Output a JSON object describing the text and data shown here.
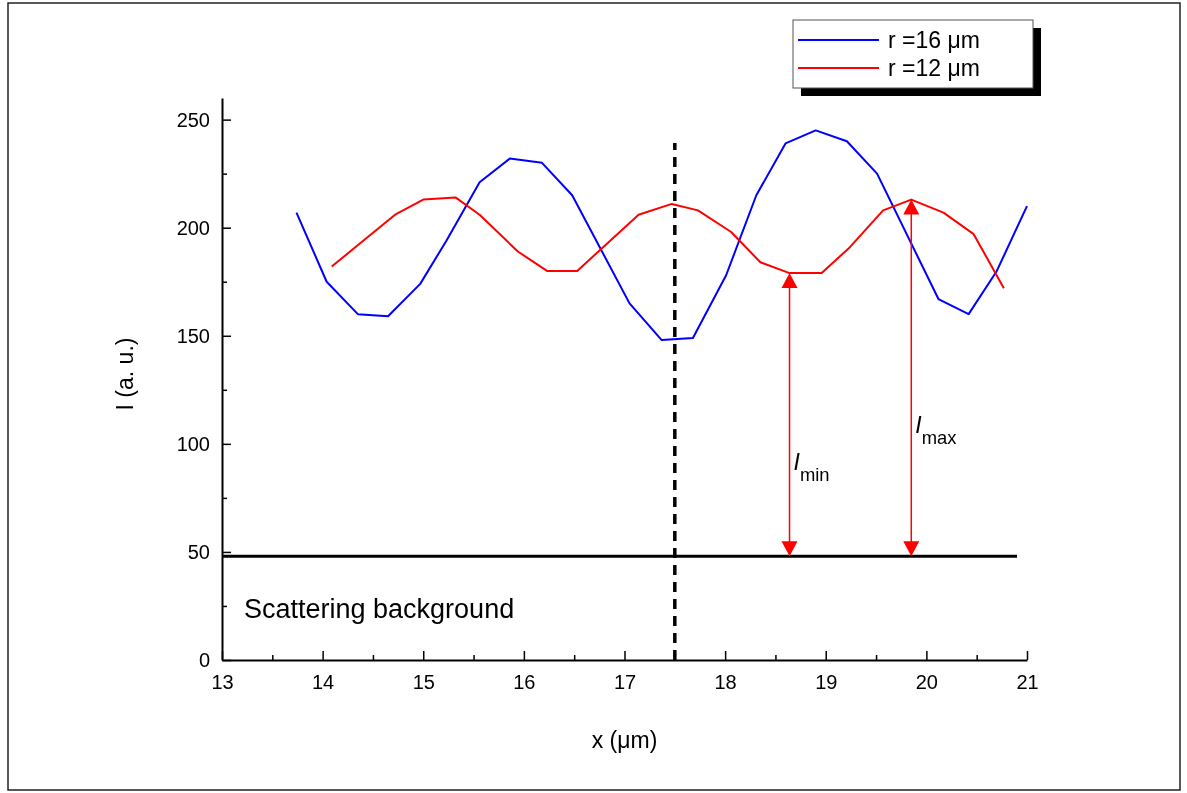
{
  "chart_data": {
    "type": "line",
    "xlabel": "x (μm)",
    "ylabel": "I (a. u.)",
    "xlim": [
      13,
      21
    ],
    "xticks": [
      13,
      {
        "value": 13.5,
        "label": null
      },
      14,
      {
        "value": 14.5,
        "label": null
      },
      15,
      {
        "value": 15.5,
        "label": null
      },
      16,
      {
        "value": 16.5,
        "label": null
      },
      17,
      {
        "value": 17.5,
        "label": null
      },
      18,
      {
        "value": 18.5,
        "label": null
      },
      19,
      {
        "value": 19.5,
        "label": null
      },
      20,
      {
        "value": 20.5,
        "label": null
      },
      21
    ],
    "ylim": [
      0,
      260
    ],
    "yticks": [
      0,
      {
        "value": 25,
        "label": null
      },
      50,
      {
        "value": 75,
        "label": null
      },
      100,
      {
        "value": 125,
        "label": null
      },
      150,
      {
        "value": 175,
        "label": null
      },
      200,
      {
        "value": 225,
        "label": null
      },
      250
    ],
    "grid": false,
    "legend": "top right",
    "marker": "none",
    "line_style": "solid",
    "series": [
      {
        "name": "r =16 μm",
        "color": "#0000ff",
        "x": [
          13.74,
          14.04,
          14.35,
          14.65,
          14.97,
          15.23,
          15.56,
          15.86,
          16.18,
          16.48,
          17.05,
          17.37,
          17.68,
          18.01,
          18.31,
          18.6,
          18.9,
          19.21,
          19.51,
          20.12,
          20.42,
          20.7,
          21.0
        ],
        "values": [
          207,
          175,
          160,
          159,
          174,
          194,
          221,
          232,
          230,
          215,
          165,
          148,
          149,
          178,
          215,
          239,
          245,
          240,
          225,
          167,
          160,
          180,
          210
        ]
      },
      {
        "name": "r =12 μm",
        "color": "#ff0000",
        "x": [
          14.09,
          14.3,
          14.72,
          15.0,
          15.32,
          15.56,
          15.94,
          16.23,
          16.53,
          17.14,
          17.47,
          17.73,
          18.06,
          18.35,
          18.64,
          18.96,
          19.24,
          19.57,
          19.85,
          20.17,
          20.47,
          20.77
        ],
        "values": [
          182,
          190,
          206,
          213,
          214,
          206,
          189,
          180,
          180,
          206,
          211,
          208,
          198,
          184,
          179,
          179,
          191,
          208,
          213,
          207,
          197,
          172
        ]
      }
    ],
    "ref_lines": [
      {
        "axis": "y",
        "value": 48,
        "label": "Scattering background",
        "color": "#000000",
        "line_style": "solid"
      },
      {
        "axis": "x",
        "value": 17.5,
        "color": "#000000",
        "line_style": "dashed"
      }
    ],
    "annotations": [
      "I$_{min}$",
      "I$_{max}$"
    ]
  }
}
